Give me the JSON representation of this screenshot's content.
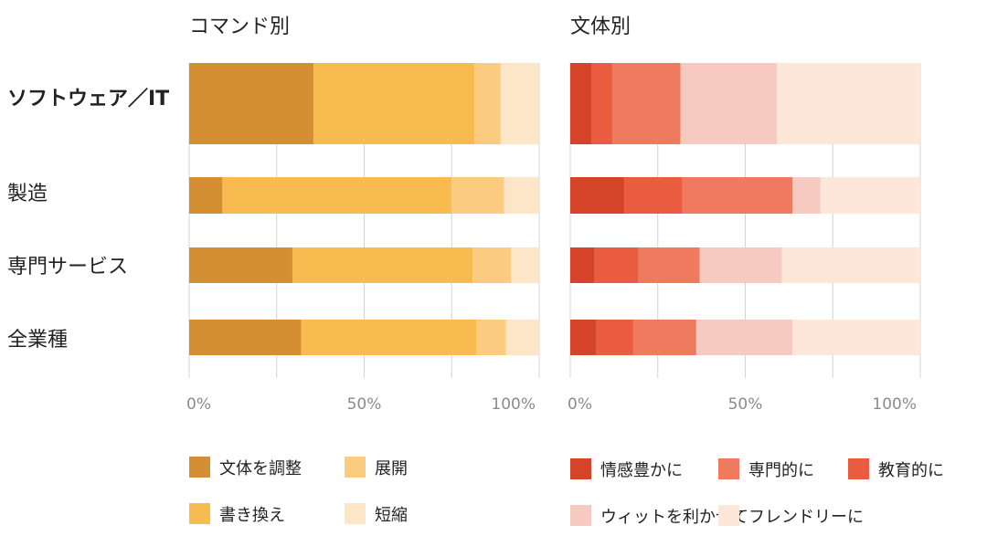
{
  "categories": [
    {
      "label": "ソフトウェア／IT",
      "highlight": true
    },
    {
      "label": "製造",
      "highlight": false
    },
    {
      "label": "専門サービス",
      "highlight": false
    },
    {
      "label": "全業種",
      "highlight": false
    }
  ],
  "chart_data": [
    {
      "type": "bar",
      "orientation": "horizontal",
      "stacked": true,
      "title": "コマンド別",
      "categories": [
        "ソフトウェア／IT",
        "製造",
        "専門サービス",
        "全業種"
      ],
      "xlim": [
        0,
        100
      ],
      "ticks": [
        0,
        25,
        50,
        75,
        100
      ],
      "tick_labels": [
        "0%",
        "",
        "50%",
        "",
        "100%"
      ],
      "grid": true,
      "legend_position": "bottom",
      "series": [
        {
          "name": "文体を調整",
          "color": "#d48f32",
          "values": [
            35.5,
            9.5,
            29.5,
            32
          ]
        },
        {
          "name": "書き換え",
          "color": "#f8bb50",
          "values": [
            46,
            65.5,
            51.5,
            50
          ]
        },
        {
          "name": "展開",
          "color": "#fbcc80",
          "values": [
            7.5,
            15,
            11,
            8.5
          ]
        },
        {
          "name": "短縮",
          "color": "#fde6c7",
          "values": [
            11,
            10,
            8,
            9.5
          ]
        }
      ]
    },
    {
      "type": "bar",
      "orientation": "horizontal",
      "stacked": true,
      "title": "文体別",
      "categories": [
        "ソフトウェア／IT",
        "製造",
        "専門サービス",
        "全業種"
      ],
      "xlim": [
        0,
        100
      ],
      "ticks": [
        0,
        25,
        50,
        75,
        100
      ],
      "tick_labels": [
        "0%",
        "",
        "50%",
        "",
        "100%"
      ],
      "grid": true,
      "legend_position": "bottom",
      "series": [
        {
          "name": "情感豊かに",
          "color": "#d54329",
          "values": [
            6,
            15.5,
            7,
            7.5
          ]
        },
        {
          "name": "教育的に",
          "color": "#e95c3f",
          "values": [
            6,
            16.5,
            12.5,
            10.5
          ]
        },
        {
          "name": "専門的に",
          "color": "#ef7a60",
          "values": [
            19.5,
            31.5,
            17.5,
            18
          ]
        },
        {
          "name": "ウィットを利かせて",
          "color": "#f7cac1",
          "values": [
            27.5,
            8,
            23.5,
            27.5
          ]
        },
        {
          "name": "フレンドリーに",
          "color": "#fce7d9",
          "values": [
            41,
            28.5,
            39.5,
            36.5
          ]
        }
      ]
    }
  ]
}
